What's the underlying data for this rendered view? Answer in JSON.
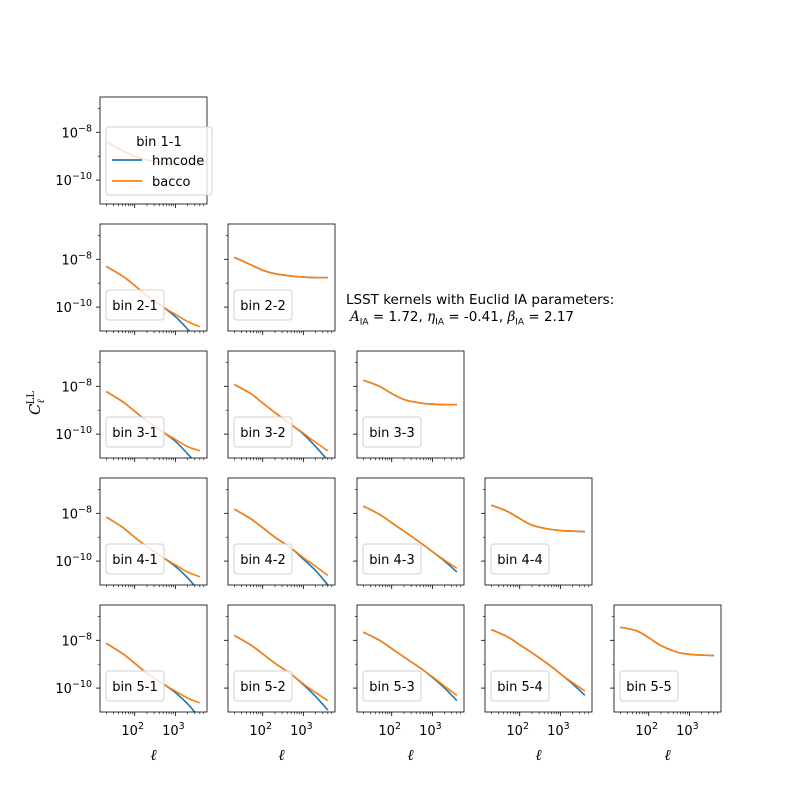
{
  "chart_data": {
    "type": "line",
    "xscale": "log",
    "yscale": "log",
    "xlim": [
      14,
      6000
    ],
    "ylim": [
      1e-11,
      3e-07
    ],
    "xlabel": "ℓ",
    "ylabel": "C_ℓ^LL",
    "x_tick_labels": [
      "10^2",
      "10^3"
    ],
    "y_tick_labels": [
      "10^-8",
      "10^-10"
    ],
    "annotation": {
      "line1": "LSST kernels with Euclid IA parameters:",
      "a_symbol": "A",
      "a_sub": "IA",
      "a_value": "= 1.72,",
      "eta_symbol": "η",
      "eta_sub": "IA",
      "eta_value": "= -0.41,",
      "beta_symbol": "β",
      "beta_sub": "IA",
      "beta_value": "= 2.17"
    },
    "legend": {
      "placement": "inside bin 1-1 panel, overlapping below",
      "entries": [
        {
          "name": "hmcode",
          "color": "#1f77b4"
        },
        {
          "name": "bacco",
          "color": "#ff7f0e"
        }
      ]
    },
    "series_colors": {
      "hmcode": "#1f77b4",
      "bacco": "#ff7f0e"
    },
    "ell": [
      20,
      50,
      100,
      200,
      500,
      1000,
      2000,
      4000
    ],
    "panels": [
      {
        "label": "bin 1-1",
        "row": 0,
        "col": 0,
        "hmcode": [
          4e-09,
          1.7e-09,
          1e-09,
          7e-10,
          5e-10,
          4.5e-10,
          4.3e-10,
          4.2e-10
        ],
        "bacco": [
          4e-09,
          1.7e-09,
          1e-09,
          7e-10,
          5e-10,
          4.5e-10,
          4.3e-10,
          4.2e-10
        ]
      },
      {
        "label": "bin 2-1",
        "row": 1,
        "col": 0,
        "hmcode": [
          5e-09,
          2e-09,
          8e-10,
          3e-10,
          1e-10,
          4e-11,
          1.2e-11,
          3e-12
        ],
        "bacco": [
          5e-09,
          2e-09,
          8e-10,
          3e-10,
          1e-10,
          5e-11,
          2.5e-11,
          1.5e-11
        ]
      },
      {
        "label": "bin 2-2",
        "row": 1,
        "col": 1,
        "hmcode": [
          1.2e-08,
          6e-09,
          3.5e-09,
          2.5e-09,
          2e-09,
          1.8e-09,
          1.7e-09,
          1.7e-09
        ],
        "bacco": [
          1.2e-08,
          6e-09,
          3.5e-09,
          2.5e-09,
          2e-09,
          1.8e-09,
          1.7e-09,
          1.7e-09
        ]
      },
      {
        "label": "bin 3-1",
        "row": 2,
        "col": 0,
        "hmcode": [
          6e-09,
          2.3e-09,
          9e-10,
          3.5e-10,
          1.2e-10,
          5e-11,
          1.5e-11,
          4e-12
        ],
        "bacco": [
          6e-09,
          2.3e-09,
          9e-10,
          3.5e-10,
          1.2e-10,
          6e-11,
          3e-11,
          2e-11
        ]
      },
      {
        "label": "bin 3-2",
        "row": 2,
        "col": 1,
        "hmcode": [
          1.2e-08,
          5e-09,
          2e-09,
          8e-10,
          2.5e-10,
          1e-10,
          3e-11,
          8e-12
        ],
        "bacco": [
          1.2e-08,
          5e-09,
          2e-09,
          8e-10,
          2.5e-10,
          1.1e-10,
          4.5e-11,
          2e-11
        ]
      },
      {
        "label": "bin 3-3",
        "row": 2,
        "col": 2,
        "hmcode": [
          1.8e-08,
          1e-08,
          5e-09,
          2.8e-09,
          2e-09,
          1.8e-09,
          1.7e-09,
          1.7e-09
        ],
        "bacco": [
          1.8e-08,
          1e-08,
          5e-09,
          2.8e-09,
          2e-09,
          1.8e-09,
          1.7e-09,
          1.7e-09
        ]
      },
      {
        "label": "bin 4-1",
        "row": 3,
        "col": 0,
        "hmcode": [
          7e-09,
          2.6e-09,
          1e-09,
          4e-10,
          1.4e-10,
          6e-11,
          2e-11,
          5e-12
        ],
        "bacco": [
          7e-09,
          2.6e-09,
          1e-09,
          4e-10,
          1.4e-10,
          7e-11,
          3.5e-11,
          2.2e-11
        ]
      },
      {
        "label": "bin 4-2",
        "row": 3,
        "col": 1,
        "hmcode": [
          1.5e-08,
          6e-09,
          2.5e-09,
          1e-09,
          3.5e-10,
          1.2e-10,
          4e-11,
          1e-11
        ],
        "bacco": [
          1.5e-08,
          6e-09,
          2.5e-09,
          1e-09,
          3.5e-10,
          1.4e-10,
          6e-11,
          2.5e-11
        ]
      },
      {
        "label": "bin 4-3",
        "row": 3,
        "col": 2,
        "hmcode": [
          2e-08,
          9e-09,
          4e-09,
          1.8e-09,
          6e-10,
          2.5e-10,
          1e-10,
          3.5e-11
        ],
        "bacco": [
          2e-08,
          9e-09,
          4e-09,
          1.8e-09,
          6e-10,
          2.5e-10,
          1.1e-10,
          5e-11
        ]
      },
      {
        "label": "bin 4-4",
        "row": 3,
        "col": 3,
        "hmcode": [
          2.2e-08,
          1.2e-08,
          6e-09,
          3.2e-09,
          2.2e-09,
          1.9e-09,
          1.8e-09,
          1.7e-09
        ],
        "bacco": [
          2.2e-08,
          1.2e-08,
          6e-09,
          3.2e-09,
          2.2e-09,
          1.9e-09,
          1.8e-09,
          1.7e-09
        ]
      },
      {
        "label": "bin 5-1",
        "row": 4,
        "col": 0,
        "hmcode": [
          7.5e-09,
          2.8e-09,
          1.1e-09,
          4.2e-10,
          1.5e-10,
          6.5e-11,
          2.2e-11,
          5.5e-12
        ],
        "bacco": [
          7.5e-09,
          2.8e-09,
          1.1e-09,
          4.2e-10,
          1.5e-10,
          7.5e-11,
          3.8e-11,
          2.4e-11
        ]
      },
      {
        "label": "bin 5-2",
        "row": 4,
        "col": 1,
        "hmcode": [
          1.6e-08,
          6.5e-09,
          2.7e-09,
          1.1e-09,
          3.8e-10,
          1.4e-10,
          4.5e-11,
          1.2e-11
        ],
        "bacco": [
          1.6e-08,
          6.5e-09,
          2.7e-09,
          1.1e-09,
          3.8e-10,
          1.5e-10,
          6.5e-11,
          3e-11
        ]
      },
      {
        "label": "bin 5-3",
        "row": 4,
        "col": 2,
        "hmcode": [
          2.2e-08,
          1e-08,
          4.5e-09,
          2e-09,
          7e-10,
          2.8e-10,
          1e-10,
          3e-11
        ],
        "bacco": [
          2.2e-08,
          1e-08,
          4.5e-09,
          2e-09,
          7e-10,
          3e-10,
          1.2e-10,
          5e-11
        ]
      },
      {
        "label": "bin 5-4",
        "row": 4,
        "col": 3,
        "hmcode": [
          2.8e-08,
          1.4e-08,
          6.5e-09,
          3e-09,
          1e-09,
          4e-10,
          1.5e-10,
          5e-11
        ],
        "bacco": [
          2.8e-08,
          1.4e-08,
          6.5e-09,
          3e-09,
          1e-09,
          4e-10,
          1.7e-10,
          7.5e-11
        ]
      },
      {
        "label": "bin 5-5",
        "row": 4,
        "col": 4,
        "hmcode": [
          3.5e-08,
          2.5e-08,
          1.3e-08,
          6e-09,
          3.2e-09,
          2.6e-09,
          2.4e-09,
          2.3e-09
        ],
        "bacco": [
          3.5e-08,
          2.5e-08,
          1.3e-08,
          6e-09,
          3.2e-09,
          2.6e-09,
          2.4e-09,
          2.3e-09
        ]
      }
    ]
  }
}
